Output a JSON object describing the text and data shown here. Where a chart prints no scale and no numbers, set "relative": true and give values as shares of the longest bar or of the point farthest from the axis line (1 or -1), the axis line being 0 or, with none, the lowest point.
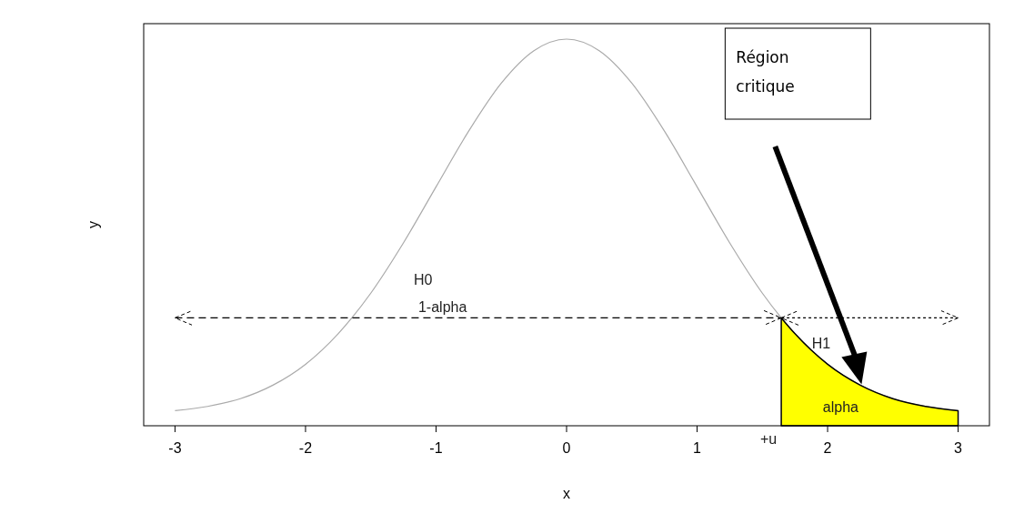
{
  "chart_data": {
    "type": "line",
    "relative": true,
    "xlabel": "x",
    "ylabel": "y",
    "xlim": [
      -3.24,
      3.24
    ],
    "xticks": [
      -3,
      -2,
      -1,
      0,
      1,
      2,
      3
    ],
    "tick_labels": "x",
    "series": [
      {
        "color": "#aaaaaa",
        "line_style": "solid",
        "x": [
          -3,
          -2.75,
          -2.5,
          -2.25,
          -2,
          -1.75,
          -1.645,
          -1.5,
          -1.25,
          -1,
          -0.75,
          -0.5,
          -0.25,
          0,
          0.25,
          0.5,
          0.75,
          1,
          1.25,
          1.5,
          1.645,
          1.75,
          2,
          2.25,
          2.5,
          2.75,
          3
        ],
        "values": [
          0.039,
          0.05,
          0.07,
          0.105,
          0.159,
          0.238,
          0.279,
          0.343,
          0.473,
          0.618,
          0.762,
          0.886,
          0.97,
          1,
          0.97,
          0.886,
          0.762,
          0.618,
          0.473,
          0.343,
          0.279,
          0.238,
          0.159,
          0.105,
          0.07,
          0.05,
          0.039
        ]
      },
      {
        "type": "area",
        "color": "#ffff00",
        "x": [
          1.645,
          1.75,
          2,
          2.25,
          2.5,
          2.75,
          3
        ],
        "values": [
          0.279,
          0.238,
          0.159,
          0.105,
          0.07,
          0.05,
          0.039
        ]
      },
      {
        "type": "line",
        "color": "#000000",
        "line_style": "dashed",
        "x": [
          -3,
          1.645
        ],
        "values": [
          0.279,
          0.279
        ]
      },
      {
        "type": "line",
        "color": "#000000",
        "line_style": "dotted",
        "x": [
          1.645,
          3
        ],
        "values": [
          0.279,
          0.279
        ]
      }
    ],
    "annotations": [
      "H0",
      {
        "text": "1-alpha",
        "x": -0.95,
        "y": 0.279
      },
      "H1",
      "alpha",
      {
        "text": "+u",
        "x": 1.645,
        "y": 0.0
      },
      "Région critique"
    ]
  }
}
